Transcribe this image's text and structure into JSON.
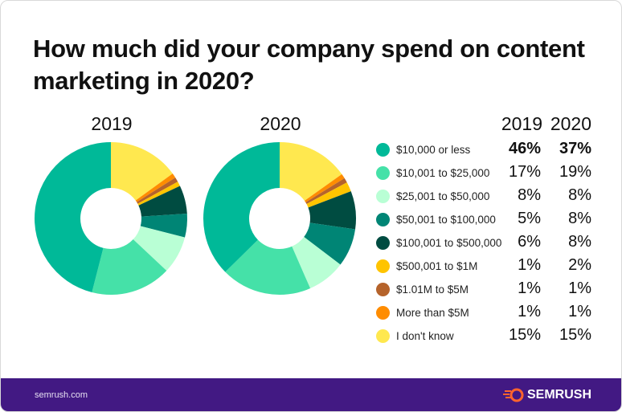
{
  "title": "How much did your company spend on content marketing in 2020?",
  "chart_data": {
    "type": "pie",
    "donut": true,
    "categories": [
      "$10,000 or less",
      "$10,001 to $25,000",
      "$25,001 to $50,000",
      "$50,001 to $100,000",
      "$100,001 to $500,000",
      "$500,001 to $1M",
      "$1.01M to $5M",
      "More than $5M",
      "I don't know"
    ],
    "colors": [
      "#00b998",
      "#45e1a8",
      "#b9ffd5",
      "#008575",
      "#004c41",
      "#ffc400",
      "#b5632b",
      "#ff8c00",
      "#ffe84f"
    ],
    "series": [
      {
        "name": "2019",
        "values": [
          46,
          17,
          8,
          5,
          6,
          1,
          1,
          1,
          15
        ],
        "labels": [
          "46%",
          "17%",
          "8%",
          "5%",
          "6%",
          "1%",
          "1%",
          "1%",
          "15%"
        ]
      },
      {
        "name": "2020",
        "values": [
          37,
          19,
          8,
          8,
          8,
          2,
          1,
          1,
          15
        ],
        "labels": [
          "37%",
          "19%",
          "8%",
          "8%",
          "8%",
          "2%",
          "1%",
          "1%",
          "15%"
        ]
      }
    ],
    "legend_placement": "right"
  },
  "footer": {
    "site": "semrush.com",
    "brand": "SEMRUSH"
  },
  "colors": {
    "footer_bg": "#421983",
    "logo_accent": "#ff642d"
  }
}
